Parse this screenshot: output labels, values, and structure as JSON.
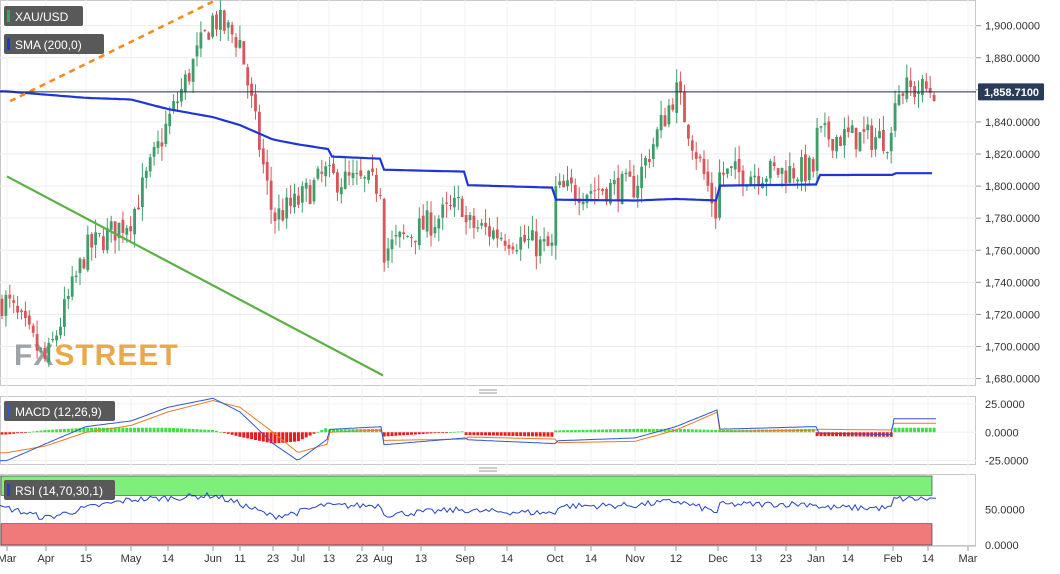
{
  "colors": {
    "bull": "#3e9e6a",
    "bear": "#d8555a",
    "sma": "#1f36d6",
    "resistance": "#f28b22",
    "support": "#5bb044",
    "macd_line": "#2f57d0",
    "signal_line": "#ec7a28",
    "hist_pos": "#3ee03e",
    "hist_neg": "#e81c1c",
    "rsi": "#2443cc",
    "rsi_overbought": "#7ef07a",
    "rsi_oversold": "#f07a7a",
    "label_bg": "#595959",
    "price_tag_bg": "#2a3b5a"
  },
  "labels": {
    "symbol": "XAU/USD",
    "sma": "SMA (200,0)",
    "macd": "MACD (12,26,9)",
    "rsi": "RSI (14,70,30,1)",
    "current_price": "1,858.7100",
    "watermark_fx": "FX",
    "watermark_street": "STREET"
  },
  "chart_data": [
    {
      "type": "candlestick",
      "title": "XAU/USD",
      "ylim": [
        1676,
        1916
      ],
      "y_ticks": [
        "1,680.0000",
        "1,700.0000",
        "1,720.0000",
        "1,740.0000",
        "1,760.0000",
        "1,780.0000",
        "1,800.0000",
        "1,820.0000",
        "1,840.0000",
        "1,860.0000",
        "1,880.0000",
        "1,900.0000"
      ],
      "x_ticks": [
        "Mar",
        "Apr",
        "15",
        "May",
        "14",
        "Jun",
        "11",
        "23",
        "Jul",
        "13",
        "23",
        "Aug",
        "13",
        "Sep",
        "14",
        "Oct",
        "14",
        "Nov",
        "12",
        "Dec",
        "13",
        "23",
        "Jan",
        "14",
        "Feb",
        "14",
        "Mar"
      ],
      "current_price": 1858.71,
      "sma_200": {
        "name": "SMA (200,0)",
        "x": [
          "Mar",
          "Apr",
          "15",
          "May",
          "14",
          "Jun",
          "11",
          "23",
          "Jul",
          "13",
          "23",
          "Aug",
          "13",
          "Sep",
          "14",
          "Oct",
          "14",
          "Nov",
          "12",
          "Dec",
          "13",
          "23",
          "Jan",
          "14",
          "Feb",
          "14"
        ],
        "values": [
          1859,
          1857,
          1855,
          1854,
          1848,
          1843,
          1838,
          1829,
          1826,
          1823,
          1820,
          1817,
          1811,
          1809,
          1806,
          1799,
          1794,
          1791,
          1792,
          1791,
          1793,
          1797,
          1801,
          1806,
          1807,
          1808
        ]
      },
      "trendlines": [
        {
          "name": "resistance",
          "style": "dashed",
          "points": [
            [
              "Jun",
              1915
            ],
            [
              "Mar",
              1852
            ]
          ]
        },
        {
          "name": "support",
          "style": "solid",
          "points": [
            [
              "Aug",
              1682
            ],
            [
              "Mar",
              1806
            ]
          ]
        }
      ],
      "price_path": {
        "x": [
          "Mar",
          "Apr",
          "15",
          "May",
          "14",
          "Jun",
          "11",
          "23",
          "Jul",
          "13",
          "23",
          "Aug",
          "13",
          "Sep",
          "14",
          "Oct",
          "14",
          "Nov",
          "12",
          "Dec",
          "13",
          "23",
          "Jan",
          "14",
          "Feb",
          "14"
        ],
        "values": [
          1728,
          1690,
          1760,
          1780,
          1840,
          1905,
          1890,
          1780,
          1790,
          1810,
          1810,
          1800,
          1740,
          1790,
          1830,
          1760,
          1780,
          1800,
          1860,
          1780,
          1785,
          1795,
          1810,
          1840,
          1830,
          1860
        ]
      }
    },
    {
      "type": "line",
      "title": "MACD (12,26,9)",
      "ylim": [
        -28,
        32
      ],
      "y_ticks": [
        "25.0000",
        "0.0000",
        "-25.0000"
      ],
      "x": [
        "Mar",
        "Apr",
        "15",
        "May",
        "14",
        "Jun",
        "11",
        "23",
        "Jul",
        "13",
        "23",
        "Aug",
        "13",
        "Sep",
        "14",
        "Oct",
        "14",
        "Nov",
        "12",
        "Dec",
        "13",
        "23",
        "Jan",
        "14",
        "Feb",
        "14"
      ],
      "series": [
        {
          "name": "macd",
          "values": [
            -25,
            -10,
            5,
            10,
            22,
            30,
            18,
            -10,
            -25,
            -5,
            0,
            5,
            -15,
            -5,
            5,
            -10,
            -20,
            -5,
            5,
            20,
            0,
            -8,
            5,
            10,
            -2,
            12
          ]
        },
        {
          "name": "signal",
          "values": [
            -18,
            -12,
            0,
            6,
            18,
            28,
            22,
            0,
            -18,
            -10,
            -2,
            2,
            -8,
            -6,
            2,
            -6,
            -15,
            -8,
            2,
            18,
            5,
            -5,
            2,
            8,
            2,
            8
          ]
        },
        {
          "name": "histogram",
          "values": [
            -2,
            2,
            4,
            4,
            4,
            2,
            -4,
            -10,
            -8,
            5,
            2,
            3,
            -7,
            1,
            3,
            -4,
            -5,
            3,
            3,
            2,
            -5,
            -3,
            3,
            2,
            -4,
            4
          ]
        }
      ]
    },
    {
      "type": "line",
      "title": "RSI (14,70,30,1)",
      "ylim": [
        0,
        100
      ],
      "y_ticks": [
        "50.0000",
        "0.0000"
      ],
      "overbought": 70,
      "oversold": 30,
      "series": [
        {
          "name": "rsi",
          "x": [
            "Mar",
            "Apr",
            "15",
            "May",
            "14",
            "Jun",
            "11",
            "23",
            "Jul",
            "13",
            "23",
            "Aug",
            "13",
            "Sep",
            "14",
            "Oct",
            "14",
            "Nov",
            "12",
            "Dec",
            "13",
            "23",
            "Jan",
            "14",
            "Feb",
            "14"
          ],
          "values": [
            52,
            38,
            52,
            64,
            66,
            70,
            58,
            40,
            46,
            58,
            54,
            56,
            38,
            50,
            58,
            45,
            48,
            56,
            62,
            46,
            48,
            52,
            58,
            60,
            52,
            65
          ]
        }
      ]
    }
  ]
}
